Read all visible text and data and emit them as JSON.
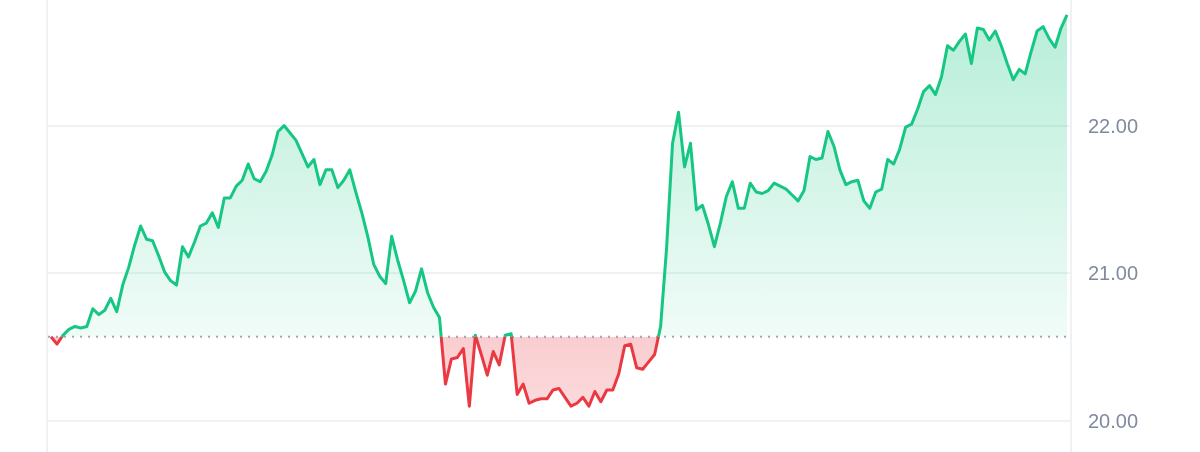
{
  "chart_data": {
    "type": "area",
    "categories": [
      null,
      null,
      null,
      null,
      null,
      null,
      null,
      null,
      null,
      null,
      null,
      null,
      null,
      null,
      null,
      null,
      null,
      null,
      null,
      null,
      null,
      null,
      null,
      null,
      null,
      null,
      null,
      null,
      null,
      null,
      null,
      null,
      null,
      null,
      null,
      null,
      null,
      null,
      null,
      null,
      null,
      null,
      null,
      null,
      null,
      null,
      null,
      null,
      null,
      null,
      null,
      null,
      null,
      null,
      null,
      null,
      null,
      null,
      null,
      null,
      null,
      null,
      null,
      null,
      null,
      null,
      null,
      null,
      null,
      null,
      null,
      null,
      null,
      null,
      null,
      null,
      null,
      null,
      null,
      null,
      null,
      null,
      null,
      null,
      null,
      null,
      null,
      null,
      null,
      null,
      null,
      null,
      null,
      null,
      null,
      null,
      null,
      null,
      null,
      null,
      null,
      null,
      null,
      null,
      null,
      null,
      null,
      null,
      null,
      null,
      null,
      null,
      null,
      null,
      null,
      null,
      null,
      null,
      null,
      null,
      null,
      null,
      null,
      null,
      null,
      null,
      null,
      null,
      null,
      null,
      null,
      null,
      null,
      null,
      null,
      null,
      null,
      null,
      null,
      null,
      null,
      null,
      null,
      null,
      null,
      null,
      null,
      null,
      null,
      null,
      null,
      null,
      null,
      null,
      null,
      null,
      null,
      null,
      null,
      null,
      null,
      null,
      null,
      null,
      null,
      null,
      null,
      null,
      null,
      null,
      null
    ],
    "values": [
      20.57,
      20.52,
      20.58,
      20.62,
      20.64,
      20.63,
      20.64,
      20.76,
      20.72,
      20.75,
      20.83,
      20.74,
      20.92,
      21.04,
      21.19,
      21.32,
      21.23,
      21.22,
      21.12,
      21.01,
      20.95,
      20.92,
      21.18,
      21.11,
      21.21,
      21.32,
      21.34,
      21.41,
      21.31,
      21.51,
      21.51,
      21.59,
      21.63,
      21.74,
      21.64,
      21.62,
      21.69,
      21.8,
      21.96,
      22.0,
      21.95,
      21.9,
      21.81,
      21.72,
      21.77,
      21.6,
      21.7,
      21.7,
      21.58,
      21.63,
      21.7,
      21.55,
      21.41,
      21.25,
      21.06,
      20.98,
      20.93,
      21.25,
      21.09,
      20.95,
      20.8,
      20.88,
      21.03,
      20.87,
      20.77,
      20.7,
      20.25,
      20.42,
      20.43,
      20.49,
      20.1,
      20.58,
      20.45,
      20.31,
      20.47,
      20.38,
      20.58,
      20.59,
      20.18,
      20.25,
      20.12,
      20.14,
      20.15,
      20.15,
      20.21,
      20.22,
      20.16,
      20.1,
      20.12,
      20.16,
      20.1,
      20.2,
      20.13,
      20.21,
      20.21,
      20.32,
      20.51,
      20.52,
      20.36,
      20.35,
      20.4,
      20.45,
      20.64,
      21.17,
      21.88,
      22.09,
      21.72,
      21.88,
      21.43,
      21.46,
      21.33,
      21.18,
      21.34,
      21.52,
      21.62,
      21.44,
      21.44,
      21.61,
      21.55,
      21.54,
      21.56,
      21.61,
      21.59,
      21.57,
      21.53,
      21.49,
      21.56,
      21.79,
      21.77,
      21.78,
      21.96,
      21.86,
      21.7,
      21.6,
      21.62,
      21.63,
      21.49,
      21.44,
      21.55,
      21.57,
      21.77,
      21.74,
      21.84,
      21.99,
      22.01,
      22.11,
      22.23,
      22.27,
      22.21,
      22.33,
      22.54,
      22.51,
      22.57,
      22.62,
      22.42,
      22.66,
      22.65,
      22.58,
      22.64,
      22.54,
      22.42,
      22.31,
      22.38,
      22.35,
      22.5,
      22.64,
      22.67,
      22.59,
      22.53,
      22.66,
      22.75
    ],
    "colors": [
      "#ea3943",
      "#ea3943",
      "#16c784",
      "#16c784",
      "#16c784",
      "#16c784",
      "#16c784",
      "#16c784",
      "#16c784",
      "#16c784",
      "#16c784",
      "#16c784",
      "#16c784",
      "#16c784",
      "#16c784",
      "#16c784",
      "#16c784",
      "#16c784",
      "#16c784",
      "#16c784",
      "#16c784",
      "#16c784",
      "#16c784",
      "#16c784",
      "#16c784",
      "#16c784",
      "#16c784",
      "#16c784",
      "#16c784",
      "#16c784",
      "#16c784",
      "#16c784",
      "#16c784",
      "#16c784",
      "#16c784",
      "#16c784",
      "#16c784",
      "#16c784",
      "#16c784",
      "#16c784",
      "#16c784",
      "#16c784",
      "#16c784",
      "#16c784",
      "#16c784",
      "#16c784",
      "#16c784",
      "#16c784",
      "#16c784",
      "#16c784",
      "#16c784",
      "#16c784",
      "#16c784",
      "#16c784",
      "#16c784",
      "#16c784",
      "#16c784",
      "#16c784",
      "#16c784",
      "#16c784",
      "#16c784",
      "#16c784",
      "#16c784",
      "#16c784",
      "#16c784",
      "#16c784",
      "#ea3943",
      "#ea3943",
      "#ea3943",
      "#ea3943",
      "#ea3943",
      "#16c784",
      "#ea3943",
      "#ea3943",
      "#ea3943",
      "#ea3943",
      "#16c784",
      "#16c784",
      "#ea3943",
      "#ea3943",
      "#ea3943",
      "#ea3943",
      "#ea3943",
      "#ea3943",
      "#ea3943",
      "#ea3943",
      "#ea3943",
      "#ea3943",
      "#ea3943",
      "#ea3943",
      "#ea3943",
      "#ea3943",
      "#ea3943",
      "#ea3943",
      "#ea3943",
      "#ea3943",
      "#ea3943",
      "#ea3943",
      "#ea3943",
      "#ea3943",
      "#ea3943",
      "#ea3943",
      "#16c784",
      "#16c784",
      "#16c784",
      "#16c784",
      "#16c784",
      "#16c784",
      "#16c784",
      "#16c784",
      "#16c784",
      "#16c784",
      "#16c784",
      "#16c784",
      "#16c784",
      "#16c784",
      "#16c784",
      "#16c784",
      "#16c784",
      "#16c784",
      "#16c784",
      "#16c784",
      "#16c784",
      "#16c784",
      "#16c784",
      "#16c784",
      "#16c784",
      "#16c784",
      "#16c784",
      "#16c784",
      "#16c784",
      "#16c784",
      "#16c784",
      "#16c784",
      "#16c784",
      "#16c784",
      "#16c784",
      "#16c784",
      "#16c784",
      "#16c784",
      "#16c784",
      "#16c784",
      "#16c784",
      "#16c784",
      "#16c784",
      "#16c784",
      "#16c784",
      "#16c784",
      "#16c784",
      "#16c784",
      "#16c784",
      "#16c784",
      "#16c784",
      "#16c784",
      "#16c784",
      "#16c784",
      "#16c784",
      "#16c784",
      "#16c784",
      "#16c784",
      "#16c784",
      "#16c784",
      "#16c784",
      "#16c784",
      "#16c784",
      "#16c784",
      "#16c784",
      "#16c784",
      "#16c784",
      "#16c784",
      "#16c784"
    ],
    "ylim": [
      19.79,
      22.85
    ],
    "yticks": [
      {
        "value": 20,
        "label": "20.00"
      },
      {
        "value": 21,
        "label": "21.00"
      },
      {
        "value": 22,
        "label": "22.00"
      }
    ],
    "grid": "y",
    "tick_labels": "y",
    "ref_lines": [
      {
        "axis": "y",
        "value": 20.57,
        "color": "#a1a7bb",
        "line_style": "dotted"
      }
    ]
  }
}
